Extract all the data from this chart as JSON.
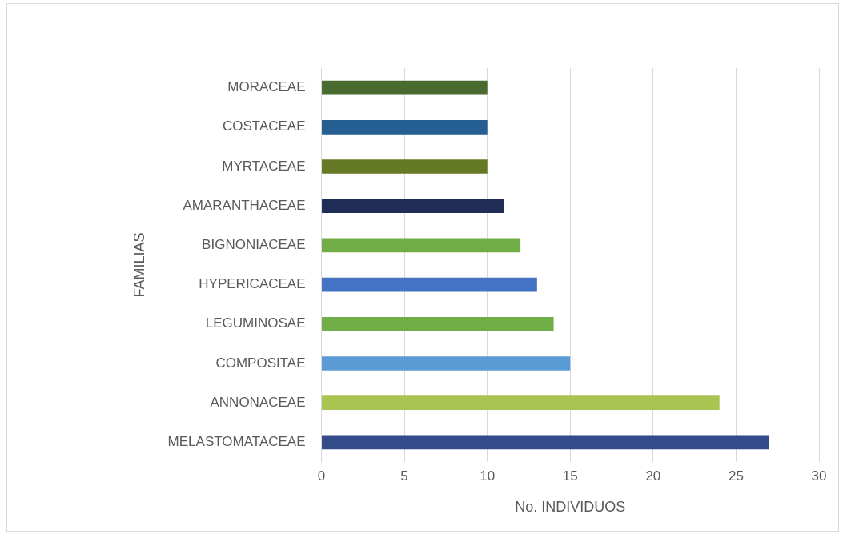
{
  "chart_data": {
    "type": "bar",
    "orientation": "horizontal",
    "xlabel": "No. INDIVIDUOS",
    "ylabel": "FAMILIAS",
    "categories": [
      "MORACEAE",
      "COSTACEAE",
      "MYRTACEAE",
      "AMARANTHACEAE",
      "BIGNONIACEAE",
      "HYPERICACEAE",
      "LEGUMINOSAE",
      "COMPOSITAE",
      "ANNONACEAE",
      "MELASTOMATACEAE"
    ],
    "values": [
      10,
      10,
      10,
      11,
      12,
      13,
      14,
      15,
      24,
      27
    ],
    "colors": [
      "#4a6b30",
      "#255e91",
      "#667a26",
      "#1f2d56",
      "#70ad47",
      "#4472c4",
      "#70ad47",
      "#5b9bd5",
      "#a9c451",
      "#344b8a"
    ],
    "xlim": [
      0,
      30
    ],
    "xticks": [
      0,
      5,
      10,
      15,
      20,
      25,
      30
    ],
    "grid": "x"
  }
}
